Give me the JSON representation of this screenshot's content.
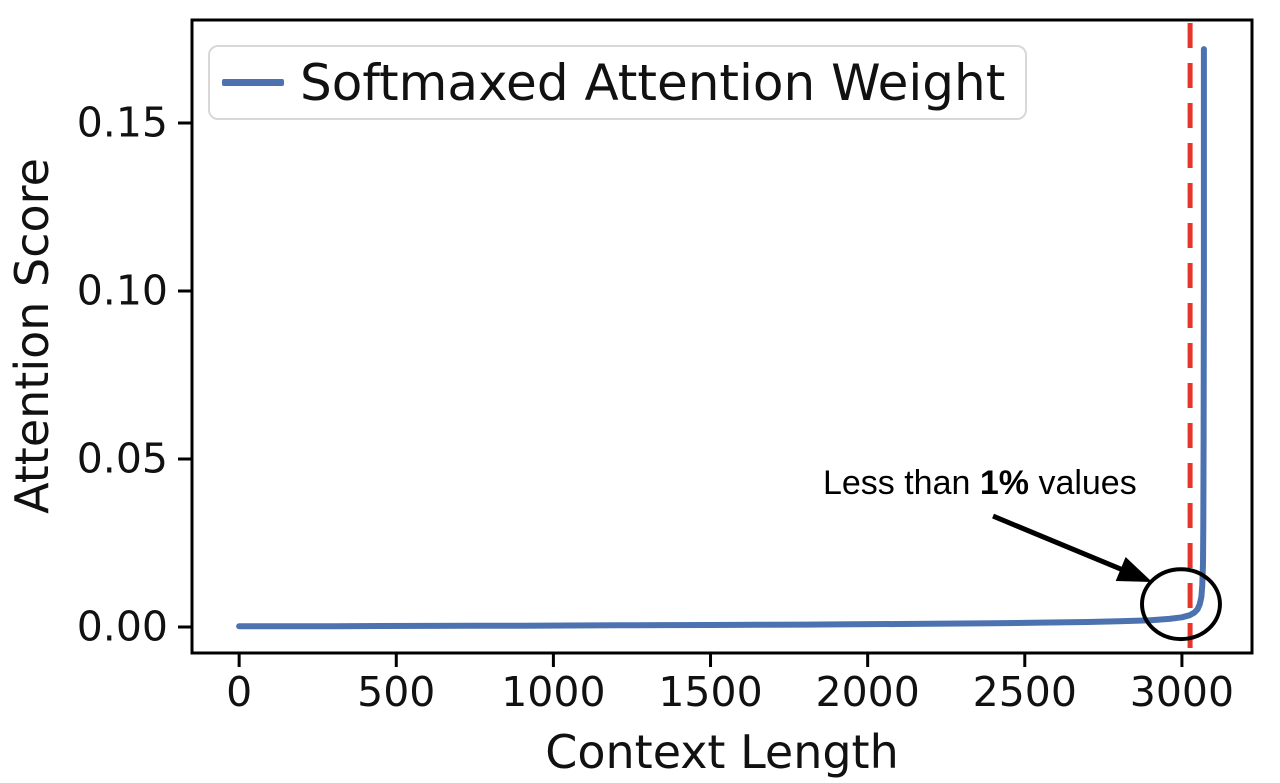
{
  "chart_data": {
    "type": "line",
    "title": "",
    "xlabel": "Context Length",
    "ylabel": "Attention Score",
    "xlim": [
      -150,
      3223
    ],
    "ylim": [
      -0.00774,
      0.18066
    ],
    "grid": false,
    "x_ticks": [
      0,
      500,
      1000,
      1500,
      2000,
      2500,
      3000
    ],
    "x_tick_labels": [
      "0",
      "500",
      "1000",
      "1500",
      "2000",
      "2500",
      "3000"
    ],
    "y_ticks": [
      0.0,
      0.05,
      0.1,
      0.15
    ],
    "y_tick_labels": [
      "0.00",
      "0.05",
      "0.10",
      "0.15"
    ],
    "legend": {
      "position": "upper left",
      "entries": [
        {
          "label": "Softmaxed Attention Weight",
          "color": "#4C72B0"
        }
      ]
    },
    "series": [
      {
        "name": "Softmaxed Attention Weight",
        "color": "#4C72B0",
        "line_width": 6,
        "points": [
          [
            0,
            0.0002
          ],
          [
            150,
            0.0002
          ],
          [
            300,
            0.00025
          ],
          [
            450,
            0.0003
          ],
          [
            600,
            0.00032
          ],
          [
            750,
            0.00035
          ],
          [
            900,
            0.0004
          ],
          [
            1050,
            0.00045
          ],
          [
            1200,
            0.0005
          ],
          [
            1350,
            0.00055
          ],
          [
            1500,
            0.0006
          ],
          [
            1650,
            0.00065
          ],
          [
            1800,
            0.0007
          ],
          [
            1950,
            0.0008
          ],
          [
            2100,
            0.0009
          ],
          [
            2250,
            0.001
          ],
          [
            2400,
            0.0011
          ],
          [
            2550,
            0.0013
          ],
          [
            2700,
            0.0015
          ],
          [
            2800,
            0.0017
          ],
          [
            2900,
            0.002
          ],
          [
            2960,
            0.0024
          ],
          [
            3000,
            0.0029
          ],
          [
            3025,
            0.0035
          ],
          [
            3040,
            0.0043
          ],
          [
            3050,
            0.0053
          ],
          [
            3057,
            0.0068
          ],
          [
            3062,
            0.009
          ],
          [
            3065,
            0.0125
          ],
          [
            3067,
            0.019
          ],
          [
            3068,
            0.03
          ],
          [
            3069,
            0.055
          ],
          [
            3070,
            0.105
          ],
          [
            3070,
            0.172
          ]
        ]
      }
    ],
    "vline": {
      "x": 3026,
      "color": "#E6352B",
      "style": "dashed",
      "width": 5,
      "dash": [
        25,
        15
      ]
    },
    "annotation": {
      "text_prefix": "Less than ",
      "text_bold": "1%",
      "text_suffix": " values",
      "text_center": [
        2357,
        0.0429
      ],
      "arrow_from": [
        2399,
        0.033
      ],
      "arrow_to": [
        2905,
        0.0134
      ],
      "circle": {
        "center": [
          2997,
          0.0068
        ],
        "rx": 124,
        "ry": 0.0104
      }
    }
  }
}
